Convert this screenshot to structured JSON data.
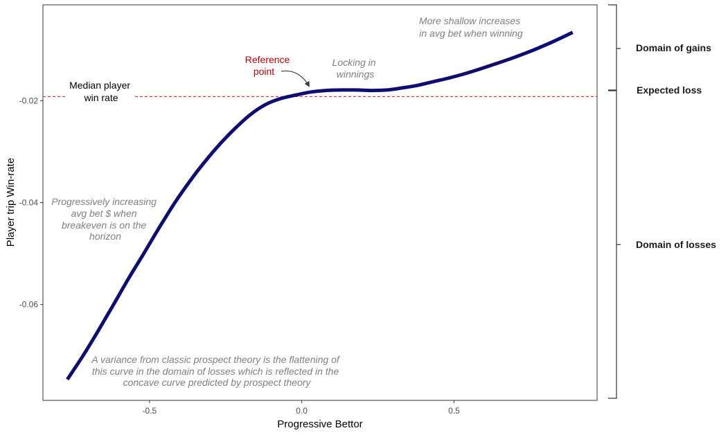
{
  "chart_data": {
    "type": "line",
    "xlabel": "Progressive Bettor",
    "ylabel": "Player trip Win-rate",
    "xlim": [
      -0.85,
      0.97
    ],
    "ylim": [
      -0.0788,
      -0.0012
    ],
    "x_ticks": [
      {
        "value": -0.5,
        "label": "-0.5"
      },
      {
        "value": 0.0,
        "label": "0.0"
      },
      {
        "value": 0.5,
        "label": "0.5"
      }
    ],
    "y_ticks": [
      {
        "value": -0.02,
        "label": "-0.02"
      },
      {
        "value": -0.04,
        "label": "-0.04"
      },
      {
        "value": -0.06,
        "label": "-0.06"
      }
    ],
    "grid": false,
    "line_color": "#0d0d73",
    "reference_line": {
      "y": -0.0192,
      "color": "#e8303a",
      "style": "dashed"
    },
    "series": [
      {
        "x": [
          -0.77,
          -0.72,
          -0.67,
          -0.62,
          -0.57,
          -0.52,
          -0.47,
          -0.42,
          -0.37,
          -0.32,
          -0.27,
          -0.22,
          -0.17,
          -0.12,
          -0.07,
          -0.02,
          0.03,
          0.08,
          0.13,
          0.18,
          0.23,
          0.28,
          0.33,
          0.38,
          0.43,
          0.48,
          0.53,
          0.58,
          0.63,
          0.68,
          0.73,
          0.78,
          0.83,
          0.89
        ],
        "y": [
          -0.0747,
          -0.0702,
          -0.0653,
          -0.0602,
          -0.055,
          -0.0501,
          -0.0451,
          -0.0403,
          -0.036,
          -0.0321,
          -0.0286,
          -0.0255,
          -0.0228,
          -0.0208,
          -0.0196,
          -0.0189,
          -0.0183,
          -0.018,
          -0.0179,
          -0.0179,
          -0.018,
          -0.0179,
          -0.0175,
          -0.017,
          -0.0163,
          -0.0156,
          -0.0148,
          -0.0139,
          -0.0129,
          -0.0119,
          -0.0108,
          -0.0096,
          -0.0083,
          -0.0066
        ]
      }
    ],
    "annotations": {
      "gains_note": [
        "More shallow increases",
        "in avg bet when winning"
      ],
      "reference_label": [
        "Reference",
        "point"
      ],
      "locking_note": [
        "Locking in",
        "winnings"
      ],
      "median_label": [
        "Median player",
        "win rate"
      ],
      "losses_note": [
        "Progressively increasing",
        "avg bet $ when",
        "breakeven is on the",
        "horizon"
      ],
      "variance_note": [
        "A variance from classic prospect theory is the flattening of",
        "this curve in the domain of losses which is reflected in the",
        "concave curve predicted by prospect theory"
      ]
    },
    "side_labels": {
      "gains": "Domain of gains",
      "expected": "Expected loss",
      "losses": "Domain of losses"
    }
  }
}
